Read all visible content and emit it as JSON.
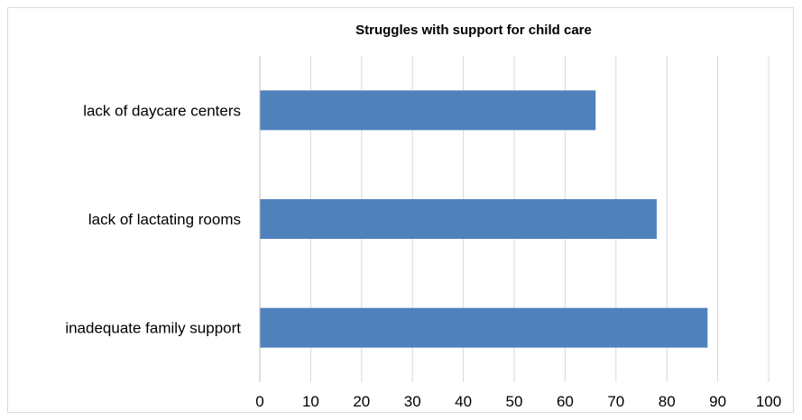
{
  "chart_data": {
    "type": "bar",
    "orientation": "horizontal",
    "title": "Struggles with support for child care",
    "xlabel": "",
    "ylabel": "",
    "categories": [
      "lack of daycare centers",
      "lack of lactating rooms",
      "inadequate family support"
    ],
    "values": [
      66,
      78,
      88
    ],
    "xlim": [
      0,
      100
    ],
    "xticks": [
      "0",
      "10",
      "20",
      "30",
      "40",
      "50",
      "60",
      "70",
      "80",
      "90",
      "100"
    ],
    "grid": "vertical",
    "legend": "none",
    "colors": {
      "bar": "#4f81bd",
      "grid": "#d9d9d9",
      "axis": "#bfbfbf",
      "frame": "#d9d9d9"
    }
  }
}
